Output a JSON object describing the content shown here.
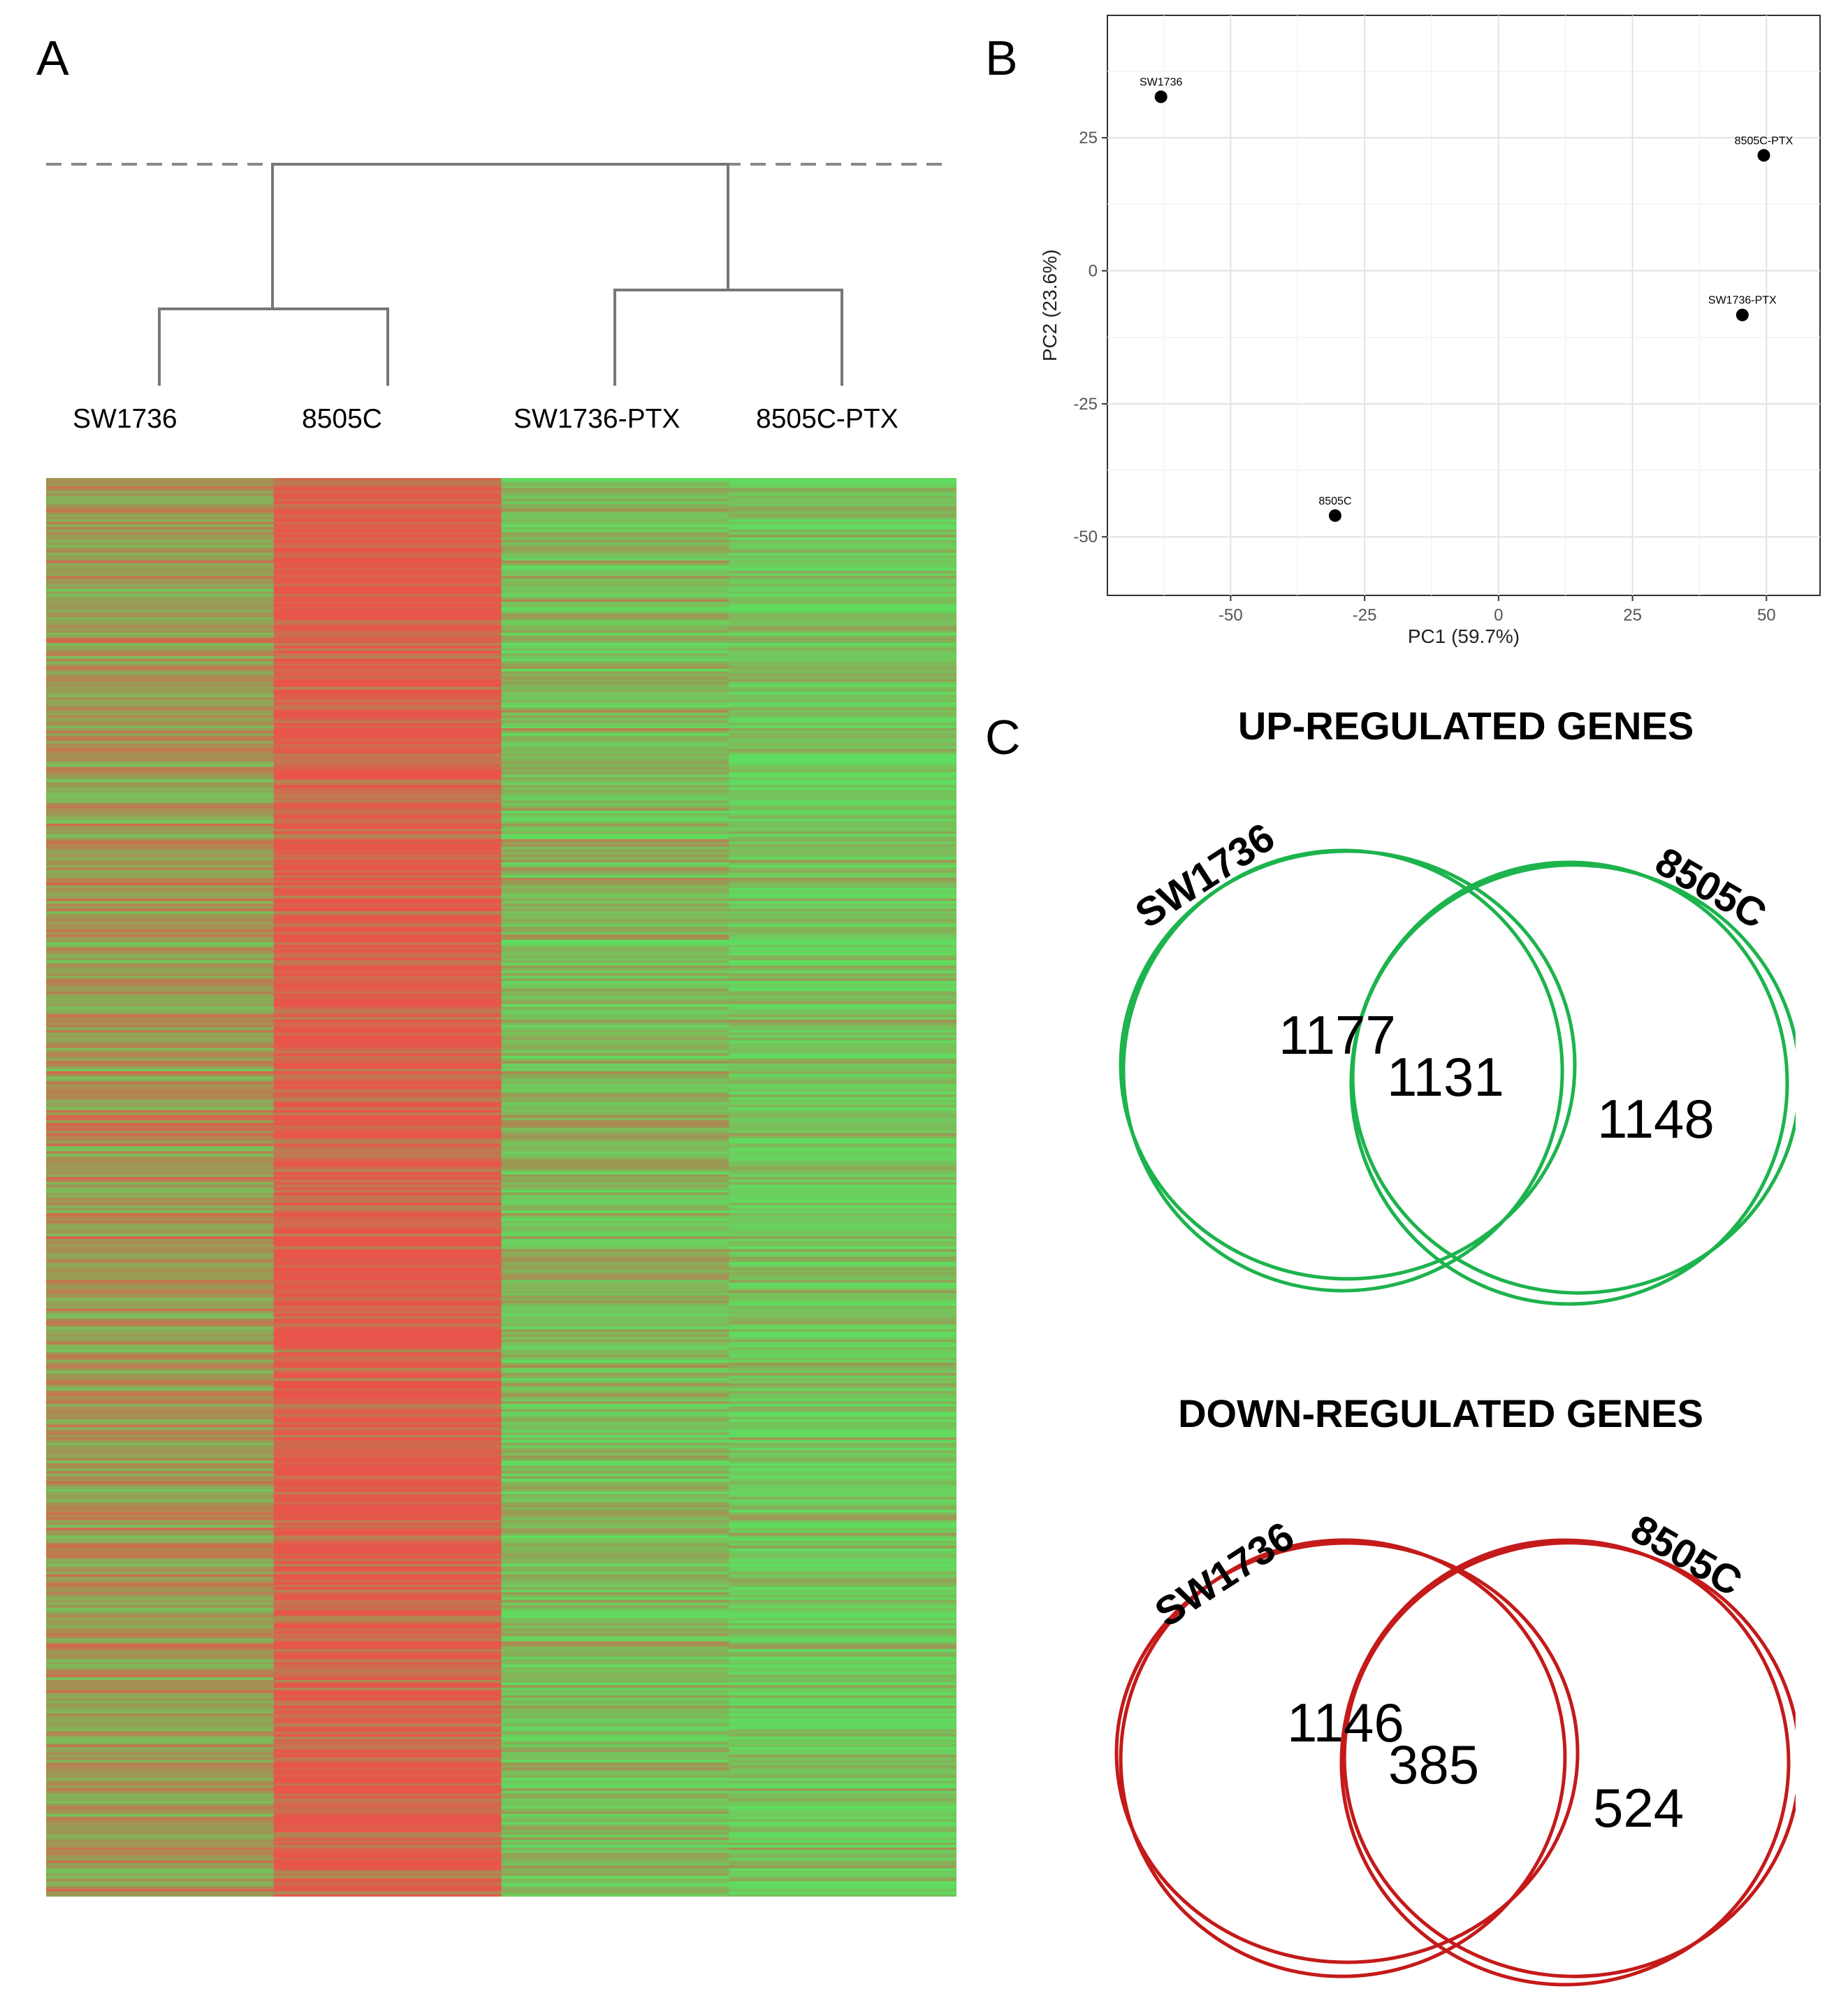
{
  "panels": {
    "a": "A",
    "b": "B",
    "c": "C"
  },
  "panel_a": {
    "samples": [
      "SW1736",
      "8505C",
      "SW1736-PTX",
      "8505C-PTX"
    ],
    "heatmap": {
      "rows": 550,
      "column_bias": [
        0.48,
        0.05,
        0.72,
        0.82
      ],
      "colors": {
        "high": "#e8554a",
        "mid": "#9a9a55",
        "low": "#5fdc5f"
      }
    }
  },
  "chart_data": [
    {
      "type": "scatter",
      "title": "",
      "xlabel": "PC1 (59.7%)",
      "ylabel": "PC2 (23.6%)",
      "xlim": [
        -73,
        60
      ],
      "ylim": [
        -61,
        48
      ],
      "xticks": [
        -50,
        -25,
        0,
        25,
        50
      ],
      "xtick_labels": [
        "-50",
        "-25",
        "0",
        "25",
        "50"
      ],
      "yticks": [
        -50,
        -25,
        0,
        25
      ],
      "ytick_labels": [
        "-50",
        "-25",
        "0",
        "25"
      ],
      "grid": true,
      "points": [
        {
          "label": "SW1736",
          "x": -63,
          "y": 32.7
        },
        {
          "label": "8505C",
          "x": -30.5,
          "y": -46
        },
        {
          "label": "8505C-PTX",
          "x": 49.5,
          "y": 21.7
        },
        {
          "label": "SW1736-PTX",
          "x": 45.5,
          "y": -8.3
        }
      ]
    },
    {
      "type": "venn",
      "title": "UP-REGULATED GENES",
      "sets": [
        "SW1736",
        "8505C"
      ],
      "values": {
        "only_left": "1177",
        "both": "1131",
        "only_right": "1148"
      },
      "color": "#1db34d"
    },
    {
      "type": "venn",
      "title": "DOWN-REGULATED GENES",
      "sets": [
        "SW1736",
        "8505C"
      ],
      "values": {
        "only_left": "1146",
        "both": "385",
        "only_right": "524"
      },
      "color": "#c41a1a"
    }
  ]
}
